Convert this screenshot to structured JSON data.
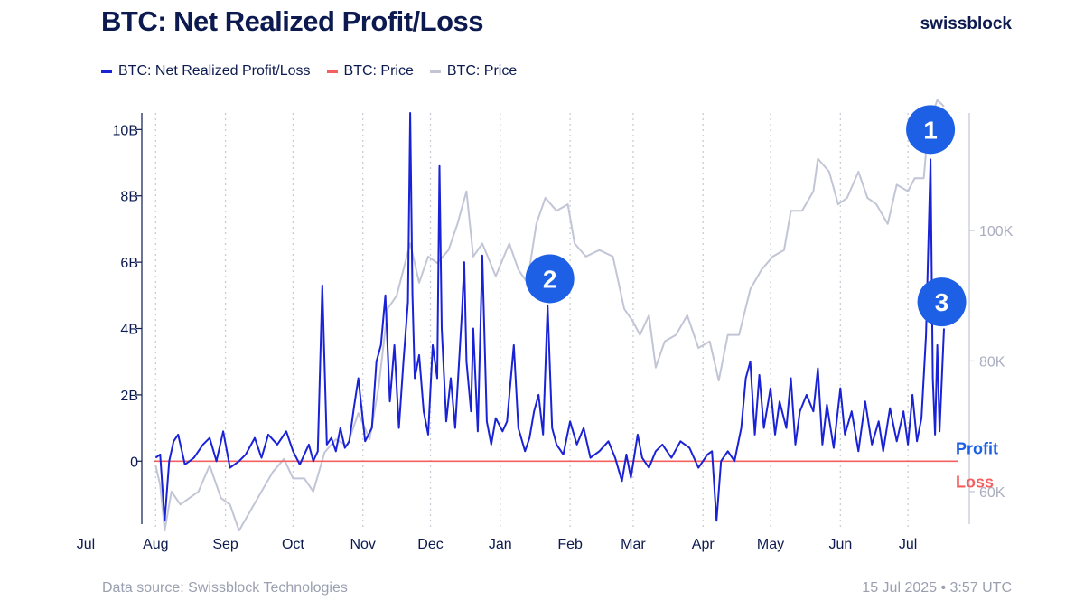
{
  "header": {
    "title": "BTC: Net Realized Profit/Loss",
    "brand": "swissblock"
  },
  "footer": {
    "source": "Data source: Swissblock Technologies",
    "timestamp": "15 Jul 2025 • 3:57 UTC"
  },
  "colors": {
    "nrpl": "#1a22d6",
    "zero": "#f26060",
    "price": "#c2c5d6",
    "text": "#0c1a4f",
    "muted": "#9aa0b0",
    "marker": "#1d60e6"
  },
  "chart_data": {
    "type": "line",
    "title": "BTC: Net Realized Profit/Loss",
    "legend": [
      "BTC: Net Realized Profit/Loss",
      "BTC: Price",
      "BTC: Price"
    ],
    "legend_position": "top-left",
    "x_range": [
      "2024-07-01",
      "2025-07-23"
    ],
    "x_ticks": [
      {
        "date": "2024-07-01",
        "label": "Jul"
      },
      {
        "date": "2024-08-01",
        "label": "Aug"
      },
      {
        "date": "2024-09-01",
        "label": "Sep"
      },
      {
        "date": "2024-10-01",
        "label": "Oct"
      },
      {
        "date": "2024-11-01",
        "label": "Nov"
      },
      {
        "date": "2024-12-01",
        "label": "Dec"
      },
      {
        "date": "2025-01-01",
        "label": "Jan"
      },
      {
        "date": "2025-02-01",
        "label": "Feb"
      },
      {
        "date": "2025-03-01",
        "label": "Mar"
      },
      {
        "date": "2025-04-01",
        "label": "Apr"
      },
      {
        "date": "2025-05-01",
        "label": "May"
      },
      {
        "date": "2025-06-01",
        "label": "Jun"
      },
      {
        "date": "2025-07-01",
        "label": "Jul"
      }
    ],
    "y_left": {
      "range": [
        -1.9,
        10.5
      ],
      "unit": "billion USD",
      "ticks": [
        {
          "value": 0,
          "label": "0"
        },
        {
          "value": 2,
          "label": "2B"
        },
        {
          "value": 4,
          "label": "4B"
        },
        {
          "value": 6,
          "label": "6B"
        },
        {
          "value": 8,
          "label": "8B"
        },
        {
          "value": 10,
          "label": "10B"
        }
      ]
    },
    "y_right": {
      "range": [
        55,
        118
      ],
      "unit": "thousand USD",
      "ticks": [
        {
          "value": 60,
          "label": "60K"
        },
        {
          "value": 80,
          "label": "80K"
        },
        {
          "value": 100,
          "label": "100K"
        }
      ]
    },
    "grid": {
      "vertical_dotted": true,
      "horizontal": false
    },
    "series": [
      {
        "name": "BTC: Net Realized Profit/Loss",
        "axis": "left",
        "color": "#1a22d6",
        "points": [
          [
            "2024-08-01",
            0.1
          ],
          [
            "2024-08-03",
            0.2
          ],
          [
            "2024-08-05",
            -1.8
          ],
          [
            "2024-08-07",
            0.0
          ],
          [
            "2024-08-09",
            0.6
          ],
          [
            "2024-08-11",
            0.8
          ],
          [
            "2024-08-14",
            -0.1
          ],
          [
            "2024-08-18",
            0.1
          ],
          [
            "2024-08-22",
            0.5
          ],
          [
            "2024-08-25",
            0.7
          ],
          [
            "2024-08-28",
            0.0
          ],
          [
            "2024-08-31",
            0.9
          ],
          [
            "2024-09-03",
            -0.2
          ],
          [
            "2024-09-07",
            0.0
          ],
          [
            "2024-09-10",
            0.2
          ],
          [
            "2024-09-14",
            0.7
          ],
          [
            "2024-09-17",
            0.1
          ],
          [
            "2024-09-20",
            0.8
          ],
          [
            "2024-09-24",
            0.5
          ],
          [
            "2024-09-28",
            0.9
          ],
          [
            "2024-10-01",
            0.3
          ],
          [
            "2024-10-04",
            -0.1
          ],
          [
            "2024-10-06",
            0.2
          ],
          [
            "2024-10-08",
            0.5
          ],
          [
            "2024-10-10",
            0.0
          ],
          [
            "2024-10-12",
            0.3
          ],
          [
            "2024-10-14",
            5.3
          ],
          [
            "2024-10-16",
            0.5
          ],
          [
            "2024-10-18",
            0.7
          ],
          [
            "2024-10-20",
            0.3
          ],
          [
            "2024-10-22",
            1.0
          ],
          [
            "2024-10-24",
            0.4
          ],
          [
            "2024-10-26",
            0.6
          ],
          [
            "2024-10-28",
            1.6
          ],
          [
            "2024-10-30",
            2.5
          ],
          [
            "2024-11-02",
            0.6
          ],
          [
            "2024-11-05",
            1.0
          ],
          [
            "2024-11-07",
            3.0
          ],
          [
            "2024-11-09",
            3.5
          ],
          [
            "2024-11-11",
            5.0
          ],
          [
            "2024-11-13",
            1.8
          ],
          [
            "2024-11-15",
            3.5
          ],
          [
            "2024-11-17",
            1.0
          ],
          [
            "2024-11-19",
            3.0
          ],
          [
            "2024-11-21",
            4.8
          ],
          [
            "2024-11-22",
            10.5
          ],
          [
            "2024-11-23",
            5.0
          ],
          [
            "2024-11-24",
            2.5
          ],
          [
            "2024-11-26",
            3.2
          ],
          [
            "2024-11-28",
            1.5
          ],
          [
            "2024-11-30",
            0.8
          ],
          [
            "2024-12-02",
            3.5
          ],
          [
            "2024-12-04",
            2.5
          ],
          [
            "2024-12-05",
            8.9
          ],
          [
            "2024-12-06",
            4.0
          ],
          [
            "2024-12-08",
            1.2
          ],
          [
            "2024-12-10",
            2.5
          ],
          [
            "2024-12-12",
            1.0
          ],
          [
            "2024-12-15",
            4.5
          ],
          [
            "2024-12-16",
            6.0
          ],
          [
            "2024-12-17",
            3.0
          ],
          [
            "2024-12-19",
            1.5
          ],
          [
            "2024-12-20",
            4.0
          ],
          [
            "2024-12-22",
            0.9
          ],
          [
            "2024-12-24",
            6.2
          ],
          [
            "2024-12-26",
            1.2
          ],
          [
            "2024-12-28",
            0.5
          ],
          [
            "2024-12-30",
            1.3
          ],
          [
            "2025-01-02",
            0.9
          ],
          [
            "2025-01-04",
            1.2
          ],
          [
            "2025-01-07",
            3.5
          ],
          [
            "2025-01-09",
            1.0
          ],
          [
            "2025-01-12",
            0.3
          ],
          [
            "2025-01-14",
            0.7
          ],
          [
            "2025-01-16",
            1.5
          ],
          [
            "2025-01-18",
            2.0
          ],
          [
            "2025-01-20",
            0.8
          ],
          [
            "2025-01-22",
            4.7
          ],
          [
            "2025-01-24",
            1.0
          ],
          [
            "2025-01-26",
            0.5
          ],
          [
            "2025-01-29",
            0.2
          ],
          [
            "2025-02-01",
            1.2
          ],
          [
            "2025-02-04",
            0.5
          ],
          [
            "2025-02-07",
            1.0
          ],
          [
            "2025-02-10",
            0.1
          ],
          [
            "2025-02-14",
            0.3
          ],
          [
            "2025-02-18",
            0.6
          ],
          [
            "2025-02-21",
            0.1
          ],
          [
            "2025-02-24",
            -0.6
          ],
          [
            "2025-02-26",
            0.2
          ],
          [
            "2025-02-28",
            -0.5
          ],
          [
            "2025-03-03",
            0.8
          ],
          [
            "2025-03-05",
            0.1
          ],
          [
            "2025-03-08",
            -0.2
          ],
          [
            "2025-03-11",
            0.3
          ],
          [
            "2025-03-14",
            0.5
          ],
          [
            "2025-03-18",
            0.1
          ],
          [
            "2025-03-22",
            0.6
          ],
          [
            "2025-03-26",
            0.4
          ],
          [
            "2025-03-30",
            -0.2
          ],
          [
            "2025-04-03",
            0.2
          ],
          [
            "2025-04-05",
            0.3
          ],
          [
            "2025-04-07",
            -1.8
          ],
          [
            "2025-04-09",
            0.0
          ],
          [
            "2025-04-12",
            0.3
          ],
          [
            "2025-04-15",
            0.0
          ],
          [
            "2025-04-18",
            1.0
          ],
          [
            "2025-04-20",
            2.5
          ],
          [
            "2025-04-22",
            3.0
          ],
          [
            "2025-04-24",
            0.8
          ],
          [
            "2025-04-26",
            2.6
          ],
          [
            "2025-04-28",
            1.0
          ],
          [
            "2025-05-01",
            2.2
          ],
          [
            "2025-05-03",
            0.8
          ],
          [
            "2025-05-05",
            1.8
          ],
          [
            "2025-05-08",
            1.0
          ],
          [
            "2025-05-10",
            2.5
          ],
          [
            "2025-05-12",
            0.5
          ],
          [
            "2025-05-14",
            1.5
          ],
          [
            "2025-05-17",
            2.0
          ],
          [
            "2025-05-20",
            1.5
          ],
          [
            "2025-05-22",
            2.8
          ],
          [
            "2025-05-24",
            0.5
          ],
          [
            "2025-05-26",
            1.7
          ],
          [
            "2025-05-29",
            0.4
          ],
          [
            "2025-06-01",
            2.2
          ],
          [
            "2025-06-03",
            0.8
          ],
          [
            "2025-06-06",
            1.5
          ],
          [
            "2025-06-09",
            0.3
          ],
          [
            "2025-06-12",
            1.8
          ],
          [
            "2025-06-15",
            0.5
          ],
          [
            "2025-06-18",
            1.2
          ],
          [
            "2025-06-20",
            0.3
          ],
          [
            "2025-06-23",
            1.6
          ],
          [
            "2025-06-26",
            0.6
          ],
          [
            "2025-06-29",
            1.5
          ],
          [
            "2025-07-01",
            0.5
          ],
          [
            "2025-07-03",
            2.0
          ],
          [
            "2025-07-05",
            0.6
          ],
          [
            "2025-07-07",
            1.3
          ],
          [
            "2025-07-09",
            3.8
          ],
          [
            "2025-07-11",
            9.1
          ],
          [
            "2025-07-12",
            2.5
          ],
          [
            "2025-07-13",
            0.8
          ],
          [
            "2025-07-14",
            3.5
          ],
          [
            "2025-07-15",
            0.9
          ],
          [
            "2025-07-17",
            4.0
          ]
        ]
      },
      {
        "name": "BTC: Price",
        "axis": "right",
        "color": "#c2c5d6",
        "points": [
          [
            "2024-08-01",
            64
          ],
          [
            "2024-08-03",
            61
          ],
          [
            "2024-08-05",
            54
          ],
          [
            "2024-08-08",
            60
          ],
          [
            "2024-08-12",
            58
          ],
          [
            "2024-08-16",
            59
          ],
          [
            "2024-08-20",
            60
          ],
          [
            "2024-08-25",
            64
          ],
          [
            "2024-08-30",
            59
          ],
          [
            "2024-09-03",
            58
          ],
          [
            "2024-09-07",
            54
          ],
          [
            "2024-09-12",
            57
          ],
          [
            "2024-09-17",
            60
          ],
          [
            "2024-09-22",
            63
          ],
          [
            "2024-09-27",
            65
          ],
          [
            "2024-10-01",
            62
          ],
          [
            "2024-10-06",
            62
          ],
          [
            "2024-10-10",
            60
          ],
          [
            "2024-10-15",
            66
          ],
          [
            "2024-10-20",
            68
          ],
          [
            "2024-10-25",
            67
          ],
          [
            "2024-10-30",
            72
          ],
          [
            "2024-11-04",
            68
          ],
          [
            "2024-11-08",
            76
          ],
          [
            "2024-11-12",
            88
          ],
          [
            "2024-11-16",
            90
          ],
          [
            "2024-11-22",
            98
          ],
          [
            "2024-11-26",
            92
          ],
          [
            "2024-11-30",
            96
          ],
          [
            "2024-12-04",
            95
          ],
          [
            "2024-12-09",
            97
          ],
          [
            "2024-12-13",
            101
          ],
          [
            "2024-12-17",
            106
          ],
          [
            "2024-12-20",
            96
          ],
          [
            "2024-12-24",
            98
          ],
          [
            "2024-12-30",
            93
          ],
          [
            "2025-01-05",
            98
          ],
          [
            "2025-01-09",
            94
          ],
          [
            "2025-01-13",
            92
          ],
          [
            "2025-01-17",
            101
          ],
          [
            "2025-01-21",
            105
          ],
          [
            "2025-01-26",
            103
          ],
          [
            "2025-01-31",
            104
          ],
          [
            "2025-02-03",
            98
          ],
          [
            "2025-02-08",
            96
          ],
          [
            "2025-02-14",
            97
          ],
          [
            "2025-02-20",
            96
          ],
          [
            "2025-02-25",
            88
          ],
          [
            "2025-03-01",
            86
          ],
          [
            "2025-03-04",
            84
          ],
          [
            "2025-03-08",
            87
          ],
          [
            "2025-03-11",
            79
          ],
          [
            "2025-03-15",
            83
          ],
          [
            "2025-03-20",
            84
          ],
          [
            "2025-03-25",
            87
          ],
          [
            "2025-03-30",
            82
          ],
          [
            "2025-04-04",
            83
          ],
          [
            "2025-04-08",
            77
          ],
          [
            "2025-04-12",
            84
          ],
          [
            "2025-04-17",
            84
          ],
          [
            "2025-04-22",
            91
          ],
          [
            "2025-04-27",
            94
          ],
          [
            "2025-05-02",
            96
          ],
          [
            "2025-05-07",
            97
          ],
          [
            "2025-05-10",
            103
          ],
          [
            "2025-05-15",
            103
          ],
          [
            "2025-05-20",
            106
          ],
          [
            "2025-05-22",
            111
          ],
          [
            "2025-05-27",
            109
          ],
          [
            "2025-05-31",
            104
          ],
          [
            "2025-06-04",
            105
          ],
          [
            "2025-06-09",
            109
          ],
          [
            "2025-06-13",
            105
          ],
          [
            "2025-06-17",
            104
          ],
          [
            "2025-06-22",
            101
          ],
          [
            "2025-06-26",
            107
          ],
          [
            "2025-07-01",
            106
          ],
          [
            "2025-07-04",
            108
          ],
          [
            "2025-07-08",
            108
          ],
          [
            "2025-07-10",
            116
          ],
          [
            "2025-07-14",
            120
          ],
          [
            "2025-07-17",
            119
          ]
        ]
      }
    ],
    "annotations": [
      {
        "label": "1",
        "date": "2025-07-11",
        "value": 10.0
      },
      {
        "label": "2",
        "date": "2025-01-23",
        "value": 5.5
      },
      {
        "label": "3",
        "date": "2025-07-16",
        "value": 4.8
      }
    ],
    "zone_labels": [
      {
        "label": "Profit",
        "color": "#1d60e6"
      },
      {
        "label": "Loss",
        "color": "#f26060"
      }
    ]
  }
}
